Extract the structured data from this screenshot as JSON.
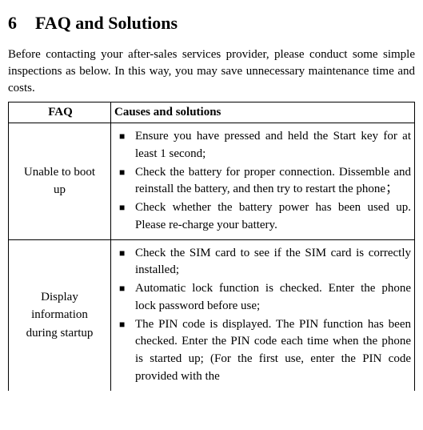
{
  "heading_number": "6",
  "heading_text": "FAQ and Solutions",
  "intro": "Before contacting your after-sales services provider, please conduct some simple inspections as below. In this way, you may save unnecessary maintenance time and costs.",
  "table": {
    "header_col1": "FAQ",
    "header_col2": "Causes and solutions",
    "rows": [
      {
        "faq_line1": "Unable to boot",
        "faq_line2": "up",
        "items": [
          "Ensure you have pressed and held the Start key for at least 1 second;",
          "Check the battery for proper connection. Dissemble and reinstall the battery, and then try to restart the phone；",
          "Check whether the battery power has been used up. Please re-charge your battery."
        ]
      },
      {
        "faq_line1": "Display",
        "faq_line2": "information",
        "faq_line3": "during startup",
        "items": [
          "Check the SIM card to see if the SIM card is correctly installed;",
          "Automatic lock function is checked. Enter the phone lock password before use;",
          "The PIN code is displayed. The PIN function has been checked. Enter the PIN code each time when the phone is started up; (For the first use, enter the PIN code provided with the"
        ]
      }
    ]
  }
}
